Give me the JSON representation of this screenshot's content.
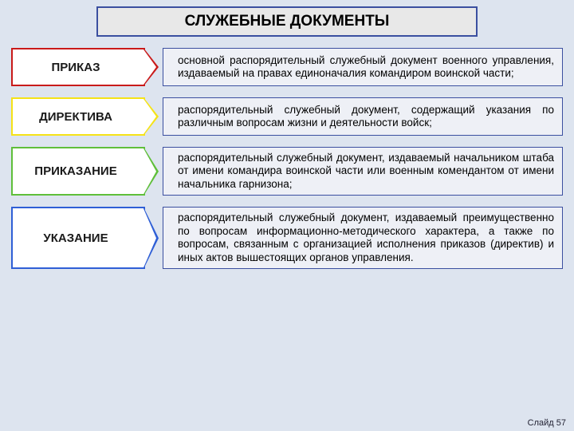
{
  "page": {
    "background_color": "#dde4ef",
    "title": "СЛУЖЕБНЫЕ ДОКУМЕНТЫ",
    "title_box": {
      "bg": "#e8e8e8",
      "border": "#3b4fa0",
      "font_size": 19
    },
    "slide_label": "Слайд 57",
    "desc_border": "#3b4fa0",
    "desc_bg": "#eef0f6",
    "items": [
      {
        "label": "ПРИКАЗ",
        "arrow_bg": "#ffffff",
        "arrow_border": "#c91a1a",
        "desc": "основной распорядительный служебный документ военного управления, издаваемый на правах единоначалия командиром воинской части;"
      },
      {
        "label": "ДИРЕКТИВА",
        "arrow_bg": "#ffffff",
        "arrow_border": "#f5e317",
        "desc": "распорядительный служебный документ, содержащий указания по различным вопросам жизни и деятельности войск;"
      },
      {
        "label": "ПРИКАЗАНИЕ",
        "arrow_bg": "#ffffff",
        "arrow_border": "#5fbf3a",
        "desc": "распорядительный служебный документ, издаваемый начальником штаба от имени командира воинской части или военным комендантом от имени начальника гарнизона;"
      },
      {
        "label": "УКАЗАНИЕ",
        "arrow_bg": "#ffffff",
        "arrow_border": "#2f5fd6",
        "desc": "распорядительный служебный документ, издаваемый преимущественно по вопросам информационно-методического характера, а также по вопросам, связанным с организацией исполнения приказов (директив) и иных актов вышестоящих органов управления."
      }
    ]
  }
}
